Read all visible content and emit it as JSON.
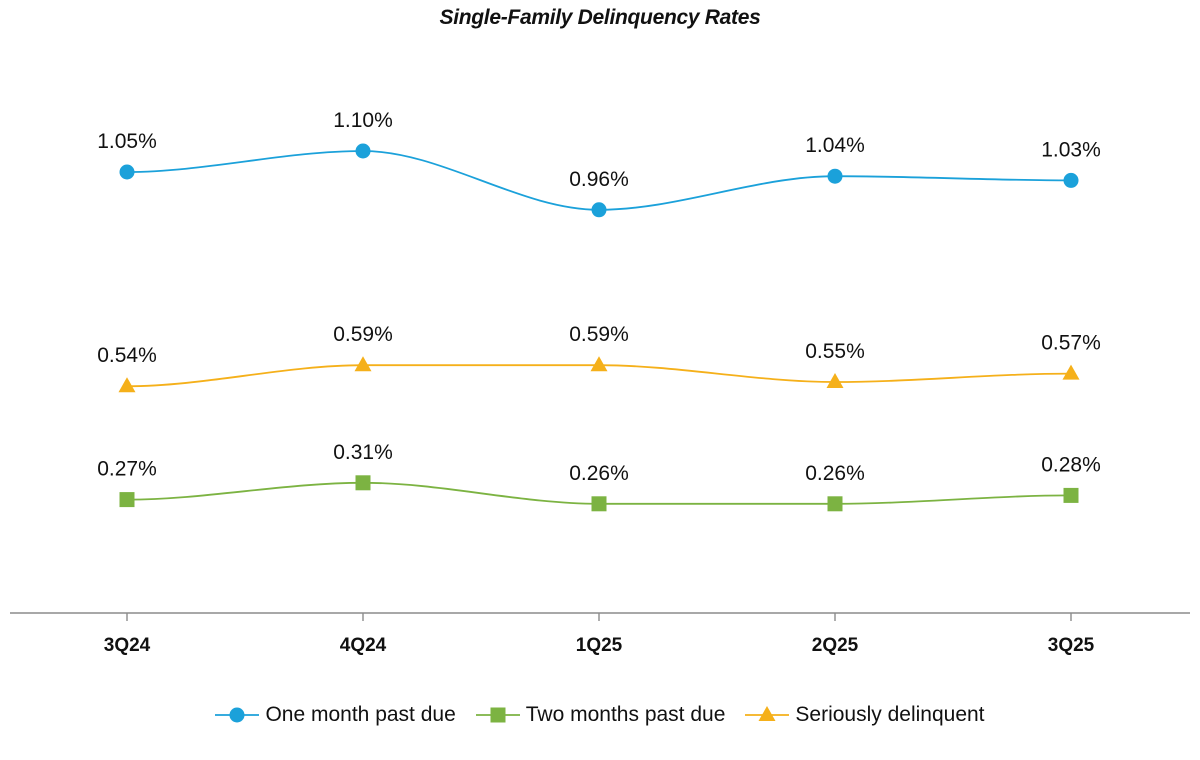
{
  "chart_data": {
    "type": "line",
    "title": "Single-Family Delinquency Rates",
    "categories": [
      "3Q24",
      "4Q24",
      "1Q25",
      "2Q25",
      "3Q25"
    ],
    "xlabel": "",
    "ylabel": "",
    "ylim": [
      0,
      1.3
    ],
    "grid": false,
    "legend_position": "bottom-center",
    "series": [
      {
        "name": "One month past due",
        "values": [
          1.05,
          1.1,
          0.96,
          1.04,
          1.03
        ],
        "labels": [
          "1.05%",
          "1.10%",
          "0.96%",
          "1.04%",
          "1.03%"
        ],
        "color": "#1BA1DA",
        "marker": "circle"
      },
      {
        "name": "Two months past due",
        "values": [
          0.27,
          0.31,
          0.26,
          0.26,
          0.28
        ],
        "labels": [
          "0.27%",
          "0.31%",
          "0.26%",
          "0.26%",
          "0.28%"
        ],
        "color": "#7CB342",
        "marker": "square"
      },
      {
        "name": "Seriously delinquent",
        "values": [
          0.54,
          0.59,
          0.59,
          0.55,
          0.57
        ],
        "labels": [
          "0.54%",
          "0.59%",
          "0.59%",
          "0.55%",
          "0.57%"
        ],
        "color": "#F5B01A",
        "marker": "triangle"
      }
    ]
  }
}
